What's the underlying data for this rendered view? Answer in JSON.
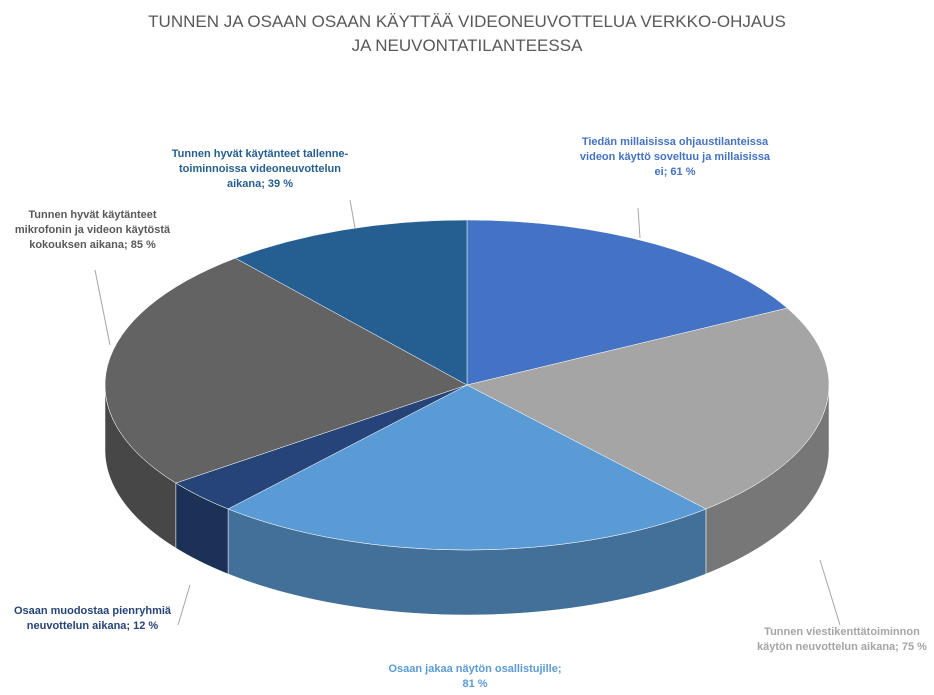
{
  "chart_data": {
    "type": "pie3d",
    "title": "TUNNEN JA OSAAN OSAAN KÄYTTÄÄ VIDEONEUVOTTELUA VERKKO-OHJAUS JA NEUVONTATILANTEESSA",
    "values": [
      61,
      75,
      81,
      12,
      85,
      39
    ],
    "value_labels": [
      "Tiedän millaisissa ohjaustilanteissa videon käyttö soveltuu ja millaisissa ei; 61 %",
      "Tunnen viestikenttätoiminnon käytön neuvottelun aikana; 75 %",
      "Osaan jakaa näytön osallistujille; 81 %",
      "Osaan muodostaa pienryhmiä neuvottelun aikana; 12 %",
      "Tunnen hyvät käytänteet mikrofonin ja videon käytöstä kokouksen aikana; 85 %",
      "Tunnen hyvät käytänteet tallenne-toiminnoissa videoneuvottelun aikana; 39 %"
    ],
    "colors": [
      "#4472c4",
      "#a5a5a5",
      "#5b9bd5",
      "#264478",
      "#636363",
      "#255e91"
    ]
  }
}
